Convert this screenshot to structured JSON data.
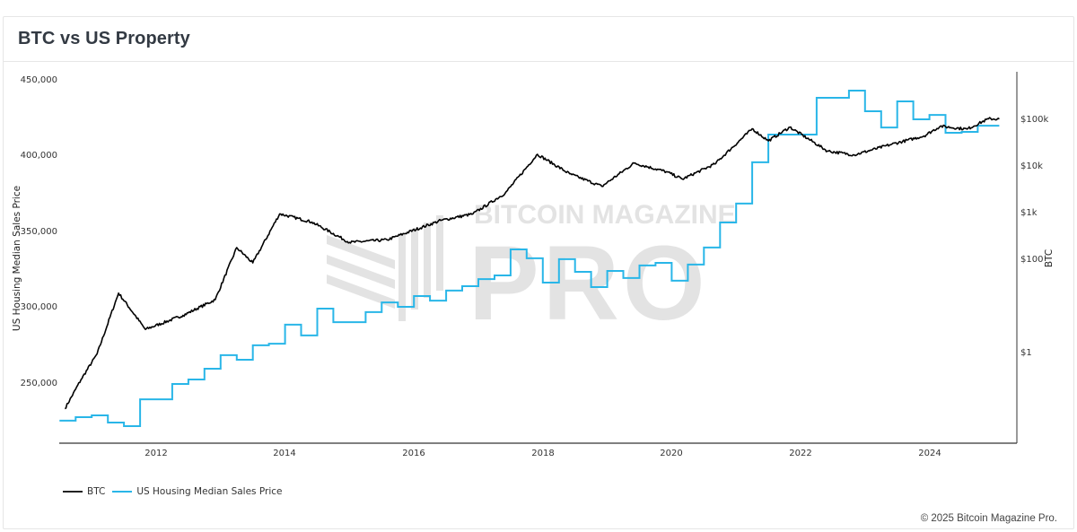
{
  "header": {
    "title": "BTC vs US Property"
  },
  "colors": {
    "btc": "#000000",
    "housing": "#29b6e8",
    "axis": "#333333",
    "watermark": "#e3e3e3"
  },
  "legend": {
    "items": [
      {
        "label": "BTC",
        "color": "#000000"
      },
      {
        "label": "US Housing Median Sales Price",
        "color": "#29b6e8"
      }
    ]
  },
  "axes": {
    "left_title": "US Housing Median Sales Price",
    "right_title": "BTC",
    "left_ticks": [
      "450,000",
      "400,000",
      "350,000",
      "300,000",
      "250,000"
    ],
    "right_ticks": [
      "$100k",
      "$10k",
      "$1k",
      "$100",
      "$1"
    ],
    "x_ticks": [
      "2012",
      "2014",
      "2016",
      "2018",
      "2020",
      "2022",
      "2024"
    ]
  },
  "watermark": {
    "line1": "BITCOIN MAGAZINE",
    "line2": "PRO"
  },
  "footer": {
    "copyright": "© 2025 Bitcoin Magazine Pro."
  },
  "chart_data": {
    "type": "line",
    "title": "BTC vs US Property",
    "xlabel": "",
    "ylabel": "US Housing Median Sales Price",
    "y2label": "BTC",
    "ylim": [
      212000,
      452000
    ],
    "y2scale": "log",
    "y2lim": [
      0.01,
      500000
    ],
    "x_range": [
      "2010-07",
      "2025-03"
    ],
    "legend_position": "bottom-left",
    "grid": false,
    "series": [
      {
        "name": "US Housing Median Sales Price",
        "axis": "left",
        "step": true,
        "x": [
          "2010-Q3",
          "2010-Q4",
          "2011-Q1",
          "2011-Q2",
          "2011-Q3",
          "2011-Q4",
          "2012-Q2",
          "2012-Q3",
          "2012-Q4",
          "2013-Q1",
          "2013-Q2",
          "2013-Q3",
          "2013-Q4",
          "2014-Q1",
          "2014-Q2",
          "2014-Q3",
          "2014-Q4",
          "2015-Q2",
          "2015-Q3",
          "2015-Q4",
          "2016-Q1",
          "2016-Q2",
          "2016-Q3",
          "2016-Q4",
          "2017-Q1",
          "2017-Q2",
          "2017-Q3",
          "2017-Q4",
          "2018-Q1",
          "2018-Q2",
          "2018-Q3",
          "2018-Q4",
          "2019-Q1",
          "2019-Q2",
          "2019-Q3",
          "2019-Q4",
          "2020-Q1",
          "2020-Q2",
          "2020-Q3",
          "2020-Q4",
          "2021-Q1",
          "2021-Q2",
          "2021-Q3",
          "2021-Q4",
          "2022-Q2",
          "2022-Q4",
          "2023-Q1",
          "2023-Q2",
          "2023-Q3",
          "2023-Q4",
          "2024-Q1",
          "2024-Q2",
          "2024-Q3",
          "2024-Q4"
        ],
        "values": [
          224600,
          226900,
          228100,
          223400,
          221000,
          238700,
          248800,
          251800,
          258900,
          267800,
          264800,
          274300,
          275400,
          287900,
          280800,
          298500,
          289600,
          296200,
          302600,
          299700,
          306800,
          303800,
          310400,
          313300,
          318000,
          320400,
          337600,
          331700,
          315700,
          331100,
          322800,
          312700,
          323400,
          318700,
          327000,
          328700,
          316900,
          327600,
          338800,
          355300,
          367800,
          395000,
          413300,
          413300,
          437600,
          442300,
          428700,
          418000,
          435200,
          423400,
          426300,
          414500,
          415100,
          419200
        ]
      },
      {
        "name": "BTC",
        "axis": "right",
        "step": false,
        "x": [
          "2010-08",
          "2010-11",
          "2011-02",
          "2011-06",
          "2011-11",
          "2012-06",
          "2012-12",
          "2013-04",
          "2013-07",
          "2013-12",
          "2014-06",
          "2015-01",
          "2015-08",
          "2016-06",
          "2016-12",
          "2017-06",
          "2017-12",
          "2018-06",
          "2018-12",
          "2019-06",
          "2019-12",
          "2020-03",
          "2020-09",
          "2021-04",
          "2021-07",
          "2021-11",
          "2022-06",
          "2022-11",
          "2023-06",
          "2023-12",
          "2024-03",
          "2024-08",
          "2024-12",
          "2025-02"
        ],
        "values": [
          0.06,
          0.25,
          0.9,
          18,
          3,
          6,
          13,
          170,
          80,
          900,
          600,
          220,
          250,
          650,
          900,
          2500,
          17000,
          6500,
          3500,
          11000,
          7200,
          5000,
          10500,
          60000,
          33000,
          65000,
          20000,
          16500,
          28000,
          42000,
          68000,
          59000,
          98000,
          97000
        ]
      }
    ]
  }
}
